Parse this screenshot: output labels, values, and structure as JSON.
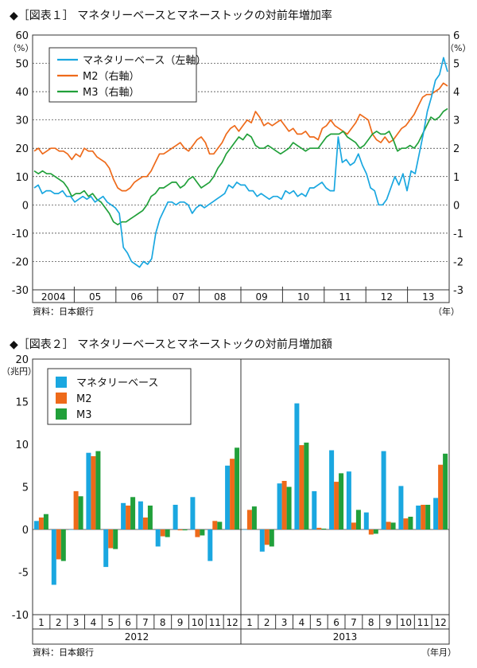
{
  "chart_data": [
    {
      "type": "line",
      "title": "◆［図表１］ マネタリーベースとマネーストックの対前年増加率",
      "left_unit": "（%）",
      "right_unit": "（%）",
      "x_unit": "（年）",
      "source": "資料：日本銀行",
      "left_ylim": [
        -30,
        60
      ],
      "right_ylim": [
        -3,
        6
      ],
      "left_ticks": [
        "60",
        "50",
        "40",
        "30",
        "20",
        "10",
        "0",
        "-10",
        "-20",
        "-30"
      ],
      "right_ticks": [
        "6",
        "5",
        "4",
        "3",
        "2",
        "1",
        "0",
        "-1",
        "-2",
        "-3"
      ],
      "years": [
        "2004",
        "05",
        "06",
        "07",
        "08",
        "09",
        "10",
        "11",
        "12",
        "13"
      ],
      "legend": [
        "マネタリーベース（左軸）",
        "M2（右軸）",
        "M3（右軸）"
      ],
      "colors": {
        "monetary_base": "#1aa7e0",
        "m2": "#ee6a1a",
        "m3": "#21a03a"
      },
      "series": [
        {
          "name": "マネタリーベース（左軸）",
          "axis": "left",
          "values": [
            6,
            7,
            4,
            5,
            5,
            4,
            4,
            5,
            3,
            3,
            1,
            2,
            3,
            2,
            3,
            1,
            2,
            3,
            1,
            0,
            -1,
            -3,
            -15,
            -17,
            -20,
            -21,
            -22,
            -20,
            -21,
            -19,
            -10,
            -5,
            -2,
            1,
            1,
            0,
            1,
            1,
            0,
            -3,
            -1,
            0,
            -1,
            0,
            1,
            2,
            3,
            4,
            7,
            6,
            8,
            7,
            7,
            5,
            5,
            3,
            4,
            3,
            2,
            3,
            3,
            2,
            5,
            4,
            5,
            3,
            4,
            3,
            6,
            6,
            7,
            8,
            6,
            5,
            5,
            24,
            15,
            16,
            14,
            15,
            18,
            14,
            11,
            6,
            5,
            0,
            0,
            2,
            6,
            10,
            7,
            11,
            5,
            12,
            11,
            18,
            25,
            33,
            38,
            44,
            46,
            52,
            47
          ]
        },
        {
          "name": "M2（右軸）",
          "axis": "right",
          "values": [
            1.9,
            2.0,
            1.8,
            1.9,
            2.0,
            2.0,
            1.9,
            1.9,
            1.8,
            1.6,
            1.8,
            1.7,
            2.0,
            1.9,
            1.9,
            1.7,
            1.6,
            1.5,
            1.3,
            0.9,
            0.6,
            0.5,
            0.5,
            0.6,
            0.8,
            0.9,
            1.0,
            1.0,
            1.2,
            1.5,
            1.8,
            1.8,
            1.9,
            2.0,
            2.1,
            2.2,
            2.0,
            1.9,
            2.1,
            2.3,
            2.4,
            2.2,
            1.8,
            1.8,
            2.0,
            2.2,
            2.5,
            2.7,
            2.8,
            2.6,
            2.8,
            3.0,
            2.9,
            3.3,
            3.1,
            2.8,
            2.9,
            2.8,
            2.9,
            3.0,
            2.8,
            2.6,
            2.7,
            2.5,
            2.5,
            2.6,
            2.4,
            2.4,
            2.3,
            2.7,
            2.8,
            3.0,
            2.8,
            2.7,
            2.6,
            2.5,
            2.7,
            2.9,
            3.2,
            3.1,
            3.0,
            2.5,
            2.3,
            2.2,
            2.4,
            2.2,
            2.3,
            2.5,
            2.7,
            2.8,
            3.0,
            3.2,
            3.5,
            3.8,
            3.9,
            3.9,
            4.0,
            4.1,
            4.3,
            4.2
          ]
        },
        {
          "name": "M3（右軸）",
          "axis": "right",
          "values": [
            1.2,
            1.1,
            1.2,
            1.1,
            1.1,
            1.0,
            0.9,
            0.8,
            0.6,
            0.3,
            0.4,
            0.4,
            0.5,
            0.3,
            0.4,
            0.2,
            0.1,
            -0.1,
            -0.3,
            -0.6,
            -0.7,
            -0.6,
            -0.6,
            -0.5,
            -0.4,
            -0.3,
            -0.2,
            0.0,
            0.3,
            0.4,
            0.6,
            0.6,
            0.7,
            0.8,
            0.8,
            0.6,
            0.7,
            0.9,
            1.0,
            0.8,
            0.6,
            0.7,
            0.8,
            1.0,
            1.3,
            1.5,
            1.8,
            2.0,
            2.2,
            2.4,
            2.3,
            2.5,
            2.4,
            2.1,
            2.0,
            2.0,
            2.1,
            2.0,
            1.9,
            1.8,
            1.9,
            2.0,
            2.2,
            2.1,
            2.0,
            1.9,
            2.0,
            2.0,
            2.0,
            2.2,
            2.4,
            2.5,
            2.5,
            2.5,
            2.6,
            2.4,
            2.3,
            2.2,
            2.0,
            2.1,
            2.3,
            2.5,
            2.6,
            2.5,
            2.5,
            2.6,
            2.3,
            1.9,
            2.0,
            2.0,
            2.1,
            2.0,
            2.2,
            2.5,
            2.8,
            3.1,
            3.0,
            3.1,
            3.3,
            3.4
          ]
        }
      ]
    },
    {
      "type": "bar",
      "title": "◆［図表２］ マネタリーベースとマネーストックの対前月増加額",
      "y_unit": "（兆円）",
      "x_unit": "（年月）",
      "source": "資料：日本銀行",
      "ylim": [
        -10,
        20
      ],
      "y_ticks": [
        "20",
        "15",
        "10",
        "5",
        "0",
        "-5",
        "-10"
      ],
      "months": [
        "1",
        "2",
        "3",
        "4",
        "5",
        "6",
        "7",
        "8",
        "9",
        "10",
        "11",
        "12",
        "1",
        "2",
        "3",
        "4",
        "5",
        "6",
        "7",
        "8",
        "9",
        "10",
        "11",
        "12"
      ],
      "years": [
        "2012",
        "2013"
      ],
      "legend": [
        "マネタリーベース",
        "M2",
        "M3"
      ],
      "colors": {
        "monetary_base": "#1aa7e0",
        "m2": "#ee6a1a",
        "m3": "#21a03a"
      },
      "series": [
        {
          "name": "マネタリーベース",
          "values": [
            1.0,
            -6.5,
            0.0,
            9.0,
            -4.4,
            3.1,
            3.3,
            -2.0,
            2.9,
            3.8,
            -3.7,
            7.5,
            0.0,
            -2.6,
            5.4,
            14.8,
            4.5,
            9.3,
            6.8,
            2.0,
            9.2,
            5.1,
            2.8,
            3.7
          ]
        },
        {
          "name": "M2",
          "values": [
            1.4,
            -3.5,
            4.5,
            8.6,
            -2.2,
            2.8,
            1.4,
            -0.8,
            -0.1,
            -0.9,
            1.0,
            8.3,
            2.3,
            -1.8,
            5.7,
            9.9,
            0.2,
            5.6,
            0.8,
            -0.6,
            0.9,
            1.3,
            2.9,
            7.6
          ]
        },
        {
          "name": "M3",
          "values": [
            1.8,
            -3.7,
            3.9,
            9.2,
            -2.3,
            3.8,
            2.8,
            -0.9,
            -0.1,
            -0.7,
            0.9,
            9.6,
            2.7,
            -2.0,
            5.0,
            10.2,
            0.1,
            6.6,
            2.3,
            -0.5,
            0.8,
            1.5,
            2.9,
            8.9
          ]
        }
      ]
    }
  ]
}
